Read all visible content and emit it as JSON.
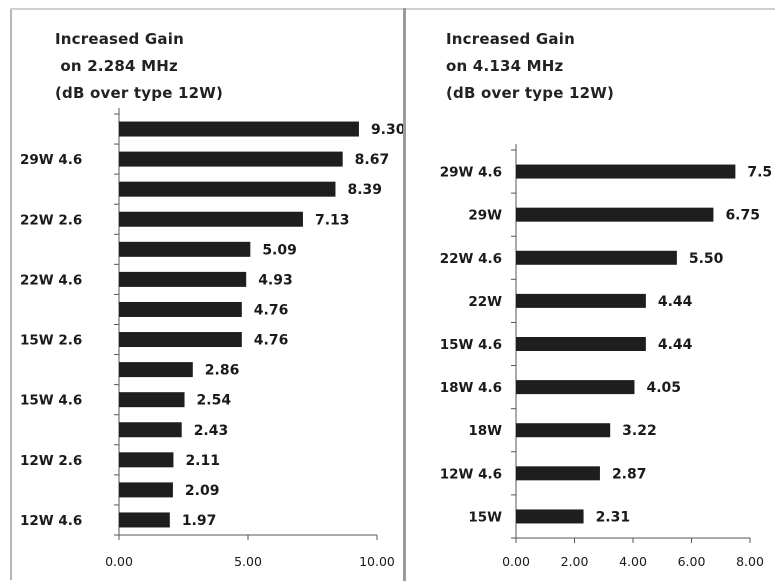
{
  "colors": {
    "bar": "#1e1e1e",
    "axis": "#555555",
    "text": "#1a1a1a"
  },
  "chart_data": [
    {
      "type": "bar",
      "orientation": "horizontal",
      "title_lines": [
        "Increased Gain",
        " on 2.284 MHz",
        "(dB over type 12W)"
      ],
      "categories": [
        "",
        "29W 4.6",
        "",
        "22W 2.6",
        "",
        "22W 4.6",
        "",
        "15W 2.6",
        "",
        "15W 4.6",
        "",
        "12W 2.6",
        "",
        "12W 4.6"
      ],
      "values": [
        9.3,
        8.67,
        8.39,
        7.13,
        5.09,
        4.93,
        4.76,
        4.76,
        2.86,
        2.54,
        2.43,
        2.11,
        2.09,
        1.97
      ],
      "value_labels": [
        "9.30",
        "8.67",
        "8.39",
        "7.13",
        "5.09",
        "4.93",
        "4.76",
        "4.76",
        "2.86",
        "2.54",
        "2.43",
        "2.11",
        "2.09",
        "1.97"
      ],
      "xlim": [
        0,
        10
      ],
      "ticks": [
        0,
        5,
        10
      ],
      "tick_labels": [
        "0.00",
        "5.00",
        "10.00"
      ],
      "grid": false
    },
    {
      "type": "bar",
      "orientation": "horizontal",
      "title_lines": [
        "Increased Gain",
        "on 4.134 MHz",
        "(dB over type 12W)"
      ],
      "categories": [
        "29W 4.6",
        "29W",
        "22W 4.6",
        "22W",
        "15W 4.6",
        "18W 4.6",
        "18W",
        "12W 4.6",
        "15W"
      ],
      "values": [
        7.5,
        6.75,
        5.5,
        4.44,
        4.44,
        4.05,
        3.22,
        2.87,
        2.31
      ],
      "value_labels": [
        "7.5",
        "6.75",
        "5.50",
        "4.44",
        "4.44",
        "4.05",
        "3.22",
        "2.87",
        "2.31"
      ],
      "xlim": [
        0,
        8
      ],
      "ticks": [
        0,
        2,
        4,
        6,
        8
      ],
      "tick_labels": [
        "0.00",
        "2.00",
        "4.00",
        "6.00",
        "8.00"
      ],
      "grid": false
    }
  ]
}
